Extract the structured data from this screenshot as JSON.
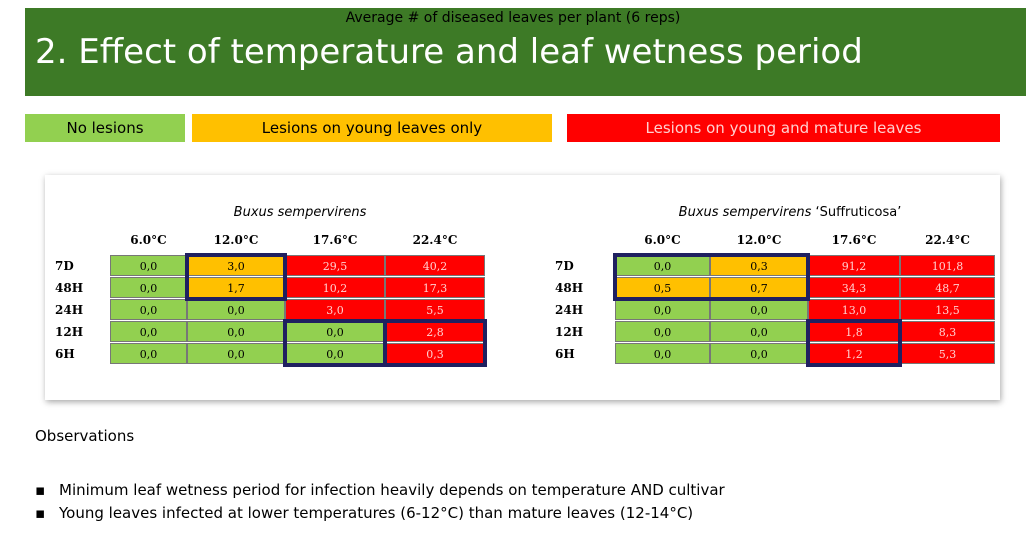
{
  "header": {
    "title": "2. Effect of temperature and leaf wetness period"
  },
  "legend": [
    {
      "label": "No lesions",
      "color": "#92d050",
      "text_color": "#000000"
    },
    {
      "label": "Lesions on young leaves only",
      "color": "#ffc000",
      "text_color": "#000000"
    },
    {
      "label": "Lesions on young and mature leaves",
      "color": "#ff0000",
      "text_color": "#ffd0d0"
    }
  ],
  "panel": {
    "caption": "Average # of diseased leaves per plant (6 reps)",
    "tables": [
      {
        "subtitle": "Buxus sempervirens",
        "subtitle_suffix": "",
        "columns": [
          "6.0°C",
          "12.0°C",
          "17.6°C",
          "22.4°C"
        ],
        "rows": [
          "7D",
          "48H",
          "24H",
          "12H",
          "6H"
        ],
        "cells": [
          [
            "0,0",
            "3,0",
            "29,5",
            "40,2"
          ],
          [
            "0,0",
            "1,7",
            "10,2",
            "17,3"
          ],
          [
            "0,0",
            "0,0",
            "3,0",
            "5,5"
          ],
          [
            "0,0",
            "0,0",
            "0,0",
            "2,8"
          ],
          [
            "0,0",
            "0,0",
            "0,0",
            "0,3"
          ]
        ],
        "cell_colors": [
          [
            "#92d050",
            "#ffc000",
            "#ff0000",
            "#ff0000"
          ],
          [
            "#92d050",
            "#ffc000",
            "#ff0000",
            "#ff0000"
          ],
          [
            "#92d050",
            "#92d050",
            "#ff0000",
            "#ff0000"
          ],
          [
            "#92d050",
            "#92d050",
            "#92d050",
            "#ff0000"
          ],
          [
            "#92d050",
            "#92d050",
            "#92d050",
            "#ff0000"
          ]
        ]
      },
      {
        "subtitle": "Buxus sempervirens",
        "subtitle_suffix": " ‘Suffruticosa’",
        "columns": [
          "6.0°C",
          "12.0°C",
          "17.6°C",
          "22.4°C"
        ],
        "rows": [
          "7D",
          "48H",
          "24H",
          "12H",
          "6H"
        ],
        "cells": [
          [
            "0,0",
            "0,3",
            "91,2",
            "101,8"
          ],
          [
            "0,5",
            "0,7",
            "34,3",
            "48,7"
          ],
          [
            "0,0",
            "0,0",
            "13,0",
            "13,5"
          ],
          [
            "0,0",
            "0,0",
            "1,8",
            "8,3"
          ],
          [
            "0,0",
            "0,0",
            "1,2",
            "5,3"
          ]
        ],
        "cell_colors": [
          [
            "#92d050",
            "#ffc000",
            "#ff0000",
            "#ff0000"
          ],
          [
            "#ffc000",
            "#ffc000",
            "#ff0000",
            "#ff0000"
          ],
          [
            "#92d050",
            "#92d050",
            "#ff0000",
            "#ff0000"
          ],
          [
            "#92d050",
            "#92d050",
            "#ff0000",
            "#ff0000"
          ],
          [
            "#92d050",
            "#92d050",
            "#ff0000",
            "#ff0000"
          ]
        ]
      }
    ]
  },
  "observations": {
    "heading": "Observations",
    "items": [
      "Minimum leaf wetness period for infection heavily depends on temperature AND cultivar",
      "Young leaves  infected at lower temperatures (6-12°C) than mature leaves (12-14°C)"
    ]
  }
}
